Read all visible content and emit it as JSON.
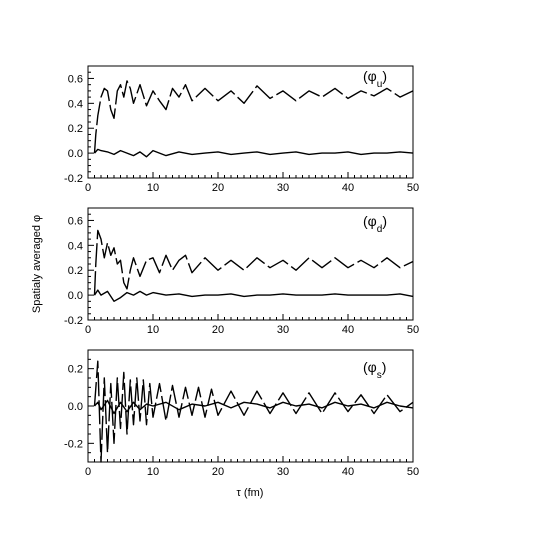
{
  "chart_data": [
    {
      "type": "line",
      "panel": "top",
      "label_main": "(φ",
      "label_sub": "u",
      "label_close": ")",
      "xlim": [
        0,
        50
      ],
      "ylim": [
        -0.2,
        0.7
      ],
      "xticks": [
        0,
        10,
        20,
        30,
        40,
        50
      ],
      "xtick_labels": [
        "0",
        "10",
        "20",
        "30",
        "40",
        "50"
      ],
      "yticks": [
        -0.2,
        0.0,
        0.2,
        0.4,
        0.6
      ],
      "ytick_labels": [
        "-0.2",
        "0.0",
        "0.2",
        "0.4",
        "0.6"
      ],
      "series": [
        {
          "style": "dashed",
          "x": [
            1,
            1.2,
            1.5,
            2,
            2.5,
            3,
            3.5,
            4,
            4.5,
            5,
            5.5,
            6,
            6.5,
            7,
            8,
            9,
            10,
            11,
            12,
            13,
            14,
            15,
            16,
            18,
            20,
            22,
            24,
            26,
            28,
            30,
            32,
            34,
            36,
            38,
            40,
            42,
            44,
            46,
            48,
            50
          ],
          "y": [
            0.0,
            0.15,
            0.3,
            0.45,
            0.52,
            0.5,
            0.35,
            0.28,
            0.5,
            0.55,
            0.45,
            0.58,
            0.52,
            0.4,
            0.55,
            0.38,
            0.5,
            0.42,
            0.35,
            0.52,
            0.45,
            0.55,
            0.42,
            0.52,
            0.42,
            0.5,
            0.4,
            0.54,
            0.44,
            0.5,
            0.42,
            0.5,
            0.45,
            0.52,
            0.44,
            0.5,
            0.46,
            0.52,
            0.45,
            0.5
          ]
        },
        {
          "style": "solid",
          "x": [
            1,
            1.5,
            2,
            3,
            4,
            5,
            6,
            7,
            8,
            9,
            10,
            12,
            14,
            16,
            18,
            20,
            22,
            24,
            26,
            28,
            30,
            32,
            34,
            36,
            38,
            40,
            42,
            44,
            46,
            48,
            50
          ],
          "y": [
            0.0,
            0.03,
            0.02,
            0.01,
            -0.01,
            0.02,
            0.0,
            -0.02,
            0.01,
            -0.03,
            0.02,
            -0.02,
            0.01,
            -0.01,
            0.0,
            0.01,
            -0.01,
            0.0,
            0.01,
            -0.01,
            0.0,
            0.01,
            -0.01,
            0.0,
            0.0,
            0.01,
            -0.01,
            0.0,
            0.0,
            0.01,
            0.0
          ]
        }
      ]
    },
    {
      "type": "line",
      "panel": "middle",
      "label_main": "(φ",
      "label_sub": "d",
      "label_close": ")",
      "ylabel": "Spatialy averaged φ",
      "xlim": [
        0,
        50
      ],
      "ylim": [
        -0.2,
        0.7
      ],
      "xticks": [
        0,
        10,
        20,
        30,
        40,
        50
      ],
      "xtick_labels": [
        "0",
        "10",
        "20",
        "30",
        "40",
        "50"
      ],
      "yticks": [
        -0.2,
        0.0,
        0.2,
        0.4,
        0.6
      ],
      "ytick_labels": [
        "-0.2",
        "0.0",
        "0.2",
        "0.4",
        "0.6"
      ],
      "series": [
        {
          "style": "dashed",
          "x": [
            1,
            1.2,
            1.5,
            2,
            2.5,
            3,
            3.5,
            4,
            4.5,
            5,
            5.5,
            6,
            6.5,
            7,
            8,
            9,
            10,
            11,
            12,
            13,
            14,
            15,
            16,
            18,
            20,
            22,
            24,
            26,
            28,
            30,
            32,
            34,
            36,
            38,
            40,
            42,
            44,
            46,
            48,
            50
          ],
          "y": [
            0.0,
            0.25,
            0.52,
            0.45,
            0.3,
            0.42,
            0.32,
            0.38,
            0.25,
            0.28,
            0.1,
            0.05,
            0.2,
            0.3,
            0.15,
            0.28,
            0.3,
            0.18,
            0.32,
            0.2,
            0.28,
            0.32,
            0.18,
            0.3,
            0.2,
            0.28,
            0.2,
            0.3,
            0.22,
            0.28,
            0.2,
            0.3,
            0.22,
            0.3,
            0.22,
            0.28,
            0.22,
            0.3,
            0.22,
            0.27
          ]
        },
        {
          "style": "solid",
          "x": [
            1,
            1.5,
            2,
            3,
            4,
            5,
            6,
            7,
            8,
            9,
            10,
            12,
            14,
            16,
            18,
            20,
            22,
            24,
            26,
            28,
            30,
            32,
            34,
            36,
            38,
            40,
            42,
            44,
            46,
            48,
            50
          ],
          "y": [
            0.0,
            0.04,
            0.0,
            0.03,
            -0.05,
            -0.02,
            0.02,
            0.0,
            0.03,
            0.0,
            0.02,
            0.0,
            0.01,
            -0.01,
            0.0,
            0.0,
            0.01,
            -0.01,
            0.0,
            0.0,
            0.01,
            0.0,
            0.0,
            0.0,
            0.01,
            0.0,
            0.0,
            0.0,
            0.0,
            0.01,
            -0.01
          ]
        }
      ]
    },
    {
      "type": "line",
      "panel": "bottom",
      "label_main": "(φ",
      "label_sub": "s",
      "label_close": ")",
      "xlabel": "τ (fm)",
      "xlim": [
        0,
        50
      ],
      "ylim": [
        -0.3,
        0.3
      ],
      "xticks": [
        0,
        10,
        20,
        30,
        40,
        50
      ],
      "xtick_labels": [
        "0",
        "10",
        "20",
        "30",
        "40",
        "50"
      ],
      "yticks": [
        -0.2,
        0.0,
        0.2
      ],
      "ytick_labels": [
        "-0.2",
        "0.0",
        "0.2"
      ],
      "series": [
        {
          "style": "dashed",
          "x": [
            1,
            1.5,
            2,
            2.5,
            3,
            3.5,
            4,
            4.5,
            5,
            5.5,
            6,
            6.5,
            7,
            7.5,
            8,
            8.5,
            9,
            9.5,
            10,
            11,
            12,
            13,
            14,
            15,
            16,
            17,
            18,
            19,
            20,
            22,
            24,
            26,
            28,
            30,
            32,
            34,
            36,
            38,
            40,
            42,
            44,
            46,
            48,
            50
          ],
          "y": [
            0.0,
            0.24,
            -0.3,
            0.15,
            -0.25,
            0.12,
            -0.2,
            0.15,
            -0.12,
            0.18,
            -0.15,
            0.14,
            -0.1,
            0.15,
            -0.08,
            0.14,
            -0.1,
            0.12,
            -0.06,
            0.12,
            -0.08,
            0.11,
            -0.06,
            0.1,
            -0.05,
            0.1,
            -0.06,
            0.09,
            -0.05,
            0.08,
            -0.05,
            0.08,
            -0.04,
            0.07,
            -0.04,
            0.07,
            -0.04,
            0.07,
            -0.03,
            0.06,
            -0.04,
            0.06,
            -0.03,
            0.02
          ]
        },
        {
          "style": "solid",
          "x": [
            1,
            1.5,
            2,
            3,
            4,
            5,
            6,
            7,
            8,
            9,
            10,
            12,
            14,
            16,
            18,
            20,
            22,
            24,
            26,
            28,
            30,
            32,
            34,
            36,
            38,
            40,
            42,
            44,
            46,
            48,
            50
          ],
          "y": [
            0.0,
            0.02,
            -0.02,
            0.03,
            -0.04,
            0.02,
            -0.03,
            0.02,
            -0.02,
            0.01,
            0.0,
            0.02,
            -0.02,
            0.01,
            0.0,
            0.02,
            -0.01,
            0.02,
            0.01,
            -0.01,
            0.02,
            0.0,
            0.01,
            -0.01,
            0.02,
            0.0,
            0.01,
            -0.01,
            0.02,
            0.0,
            -0.01
          ]
        }
      ]
    }
  ]
}
